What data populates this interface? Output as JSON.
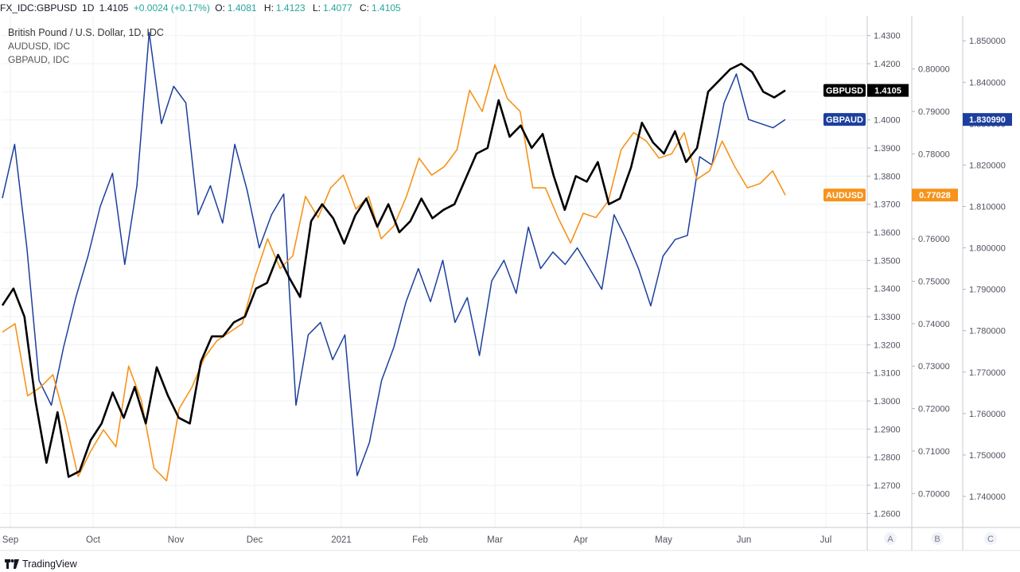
{
  "header": {
    "symbol": "FX_IDC:GBPUSD",
    "interval": "1D",
    "last": "1.4105",
    "change": "+0.0024 (+0.17%)",
    "o_label": "O:",
    "o_value": "1.4081",
    "h_label": "H:",
    "h_value": "1.4123",
    "l_label": "L:",
    "l_value": "1.4077",
    "c_label": "C:",
    "c_value": "1.4105"
  },
  "legend": {
    "main": "British Pound / U.S. Dollar, 1D, IDC",
    "second": "AUDUSD, IDC",
    "third": "GBPAUD, IDC"
  },
  "footer": {
    "brand": "TradingView"
  },
  "colors": {
    "gbpusd": "#000000",
    "audusd": "#f7931a",
    "gbpaud": "#1c3f9e",
    "grid": "#eef0f3"
  },
  "chart_data": {
    "type": "line",
    "x_labels": [
      "Sep",
      "Oct",
      "Nov",
      "Dec",
      "2021",
      "Feb",
      "Mar",
      "Apr",
      "May",
      "Jun",
      "Jul"
    ],
    "axis_labels": [
      "A",
      "B",
      "C"
    ],
    "axes": {
      "A": {
        "range": [
          1.255,
          1.437
        ],
        "ticks": [
          "1.2600",
          "1.2700",
          "1.2800",
          "1.2900",
          "1.3000",
          "1.3100",
          "1.3200",
          "1.3300",
          "1.3400",
          "1.3500",
          "1.3600",
          "1.3700",
          "1.3800",
          "1.3900",
          "1.4000",
          "1.4100",
          "1.4200",
          "1.4300"
        ]
      },
      "B": {
        "ranged": true,
        "range": [
          0.692,
          0.8125
        ],
        "ticks": [
          "0.70000",
          "0.71000",
          "0.72000",
          "0.73000",
          "0.74000",
          "0.75000",
          "0.76000",
          "0.77000",
          "0.78000",
          "0.79000",
          "0.80000"
        ]
      },
      "C": {
        "range": [
          1.7325,
          1.856
        ],
        "ticks": [
          "1.740000",
          "1.750000",
          "1.760000",
          "1.770000",
          "1.780000",
          "1.790000",
          "1.800000",
          "1.810000",
          "1.820000",
          "1.830000",
          "1.840000",
          "1.850000"
        ]
      }
    },
    "series": [
      {
        "name": "GBPUSD",
        "axis": "A",
        "last": "1.4105",
        "values": [
          1.334,
          1.34,
          1.33,
          1.3,
          1.278,
          1.296,
          1.273,
          1.275,
          1.286,
          1.292,
          1.303,
          1.294,
          1.305,
          1.292,
          1.312,
          1.302,
          1.294,
          1.292,
          1.314,
          1.323,
          1.323,
          1.328,
          1.33,
          1.34,
          1.342,
          1.352,
          1.344,
          1.337,
          1.364,
          1.37,
          1.365,
          1.356,
          1.366,
          1.372,
          1.362,
          1.37,
          1.36,
          1.364,
          1.372,
          1.365,
          1.368,
          1.37,
          1.379,
          1.388,
          1.39,
          1.407,
          1.394,
          1.398,
          1.39,
          1.395,
          1.38,
          1.368,
          1.38,
          1.378,
          1.385,
          1.37,
          1.372,
          1.383,
          1.399,
          1.392,
          1.388,
          1.396,
          1.385,
          1.39,
          1.41,
          1.414,
          1.418,
          1.42,
          1.417,
          1.41,
          1.408,
          1.4105
        ]
      },
      {
        "name": "AUDUSD",
        "axis": "B",
        "last": "0.77028",
        "values": [
          0.738,
          0.74,
          0.723,
          0.725,
          0.728,
          0.717,
          0.704,
          0.71,
          0.715,
          0.711,
          0.73,
          0.722,
          0.706,
          0.703,
          0.72,
          0.725,
          0.732,
          0.736,
          0.738,
          0.74,
          0.751,
          0.76,
          0.753,
          0.756,
          0.77,
          0.765,
          0.772,
          0.775,
          0.767,
          0.77,
          0.76,
          0.763,
          0.77,
          0.779,
          0.775,
          0.777,
          0.781,
          0.795,
          0.79,
          0.801,
          0.793,
          0.79,
          0.772,
          0.772,
          0.765,
          0.759,
          0.766,
          0.765,
          0.769,
          0.781,
          0.785,
          0.783,
          0.779,
          0.78,
          0.785,
          0.774,
          0.776,
          0.783,
          0.777,
          0.772,
          0.773,
          0.776,
          0.7703
        ]
      },
      {
        "name": "GBPAUD",
        "axis": "C",
        "last": "1.830990",
        "values": [
          1.812,
          1.825,
          1.8,
          1.768,
          1.762,
          1.776,
          1.788,
          1.798,
          1.81,
          1.818,
          1.796,
          1.815,
          1.852,
          1.83,
          1.839,
          1.835,
          1.808,
          1.815,
          1.806,
          1.825,
          1.814,
          1.8,
          1.808,
          1.813,
          1.762,
          1.779,
          1.782,
          1.773,
          1.779,
          1.745,
          1.753,
          1.768,
          1.776,
          1.787,
          1.795,
          1.787,
          1.797,
          1.782,
          1.788,
          1.774,
          1.792,
          1.797,
          1.789,
          1.805,
          1.795,
          1.799,
          1.796,
          1.8,
          1.795,
          1.79,
          1.808,
          1.802,
          1.795,
          1.786,
          1.798,
          1.802,
          1.803,
          1.822,
          1.82,
          1.835,
          1.842,
          1.831,
          1.83,
          1.829,
          1.831
        ]
      }
    ]
  }
}
